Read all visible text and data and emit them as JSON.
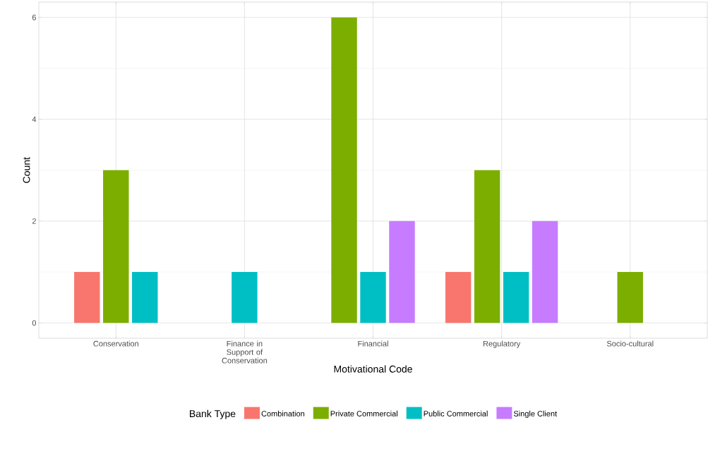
{
  "chart_data": {
    "type": "bar",
    "xlabel": "Motivational Code",
    "ylabel": "Count",
    "legend_title": "Bank Type",
    "categories": [
      "Conservation",
      "Finance in Support of Conservation",
      "Financial",
      "Regulatory",
      "Socio-cultural"
    ],
    "series": [
      {
        "name": "Combination",
        "color": "#f8766d",
        "values": [
          1,
          null,
          null,
          1,
          null
        ]
      },
      {
        "name": "Private Commercial",
        "color": "#7cae00",
        "values": [
          3,
          null,
          6,
          3,
          1
        ]
      },
      {
        "name": "Public Commercial",
        "color": "#00bfc4",
        "values": [
          1,
          1,
          1,
          1,
          null
        ]
      },
      {
        "name": "Single Client",
        "color": "#c77cff",
        "values": [
          null,
          null,
          2,
          2,
          null
        ]
      }
    ],
    "ylim": [
      -0.3,
      6.3
    ],
    "yticks": [
      0,
      2,
      4,
      6
    ],
    "grid": true,
    "legend": "bottom"
  }
}
